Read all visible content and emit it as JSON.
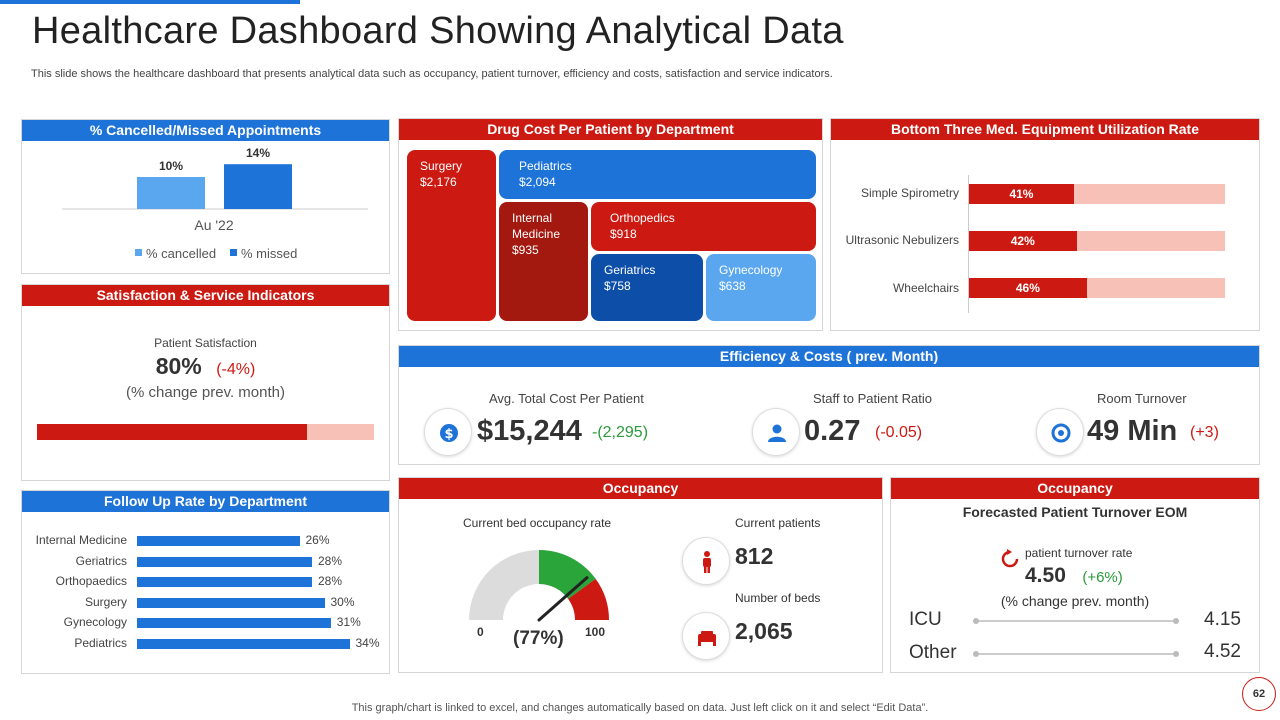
{
  "page": {
    "title": "Healthcare Dashboard Showing Analytical Data",
    "subtitle": "This slide shows the healthcare dashboard that presents analytical data such as occupancy, patient turnover,  efficiency and costs, satisfaction and service indicators.",
    "footer": "This graph/chart is linked to excel,  and changes automatically based on data. Just left click on it and select “Edit Data”.",
    "page_number": "62"
  },
  "colors": {
    "blue": "#1e73d8",
    "light_blue": "#5aa7ef",
    "red": "#cc1a12",
    "dark_red": "#a3190f",
    "pink": "#f8c1b7",
    "green": "#2a9a3a"
  },
  "panels": {
    "cancelled": {
      "title": "% Cancelled/Missed Appointments"
    },
    "drug_cost": {
      "title": "Drug Cost Per Patient by Department"
    },
    "equipment": {
      "title": "Bottom Three Med. Equipment Utilization Rate"
    },
    "satisfaction": {
      "title": "Satisfaction & Service Indicators",
      "label": "Patient Satisfaction",
      "value": "80%",
      "change": "(-4%)",
      "note": "(% change prev. month)",
      "fill": 0.8
    },
    "efficiency": {
      "title": "Efficiency & Costs ( prev. Month)",
      "kpis": [
        {
          "label": "Avg. Total Cost Per Patient",
          "value": "$15,244",
          "change": "-(2,295)",
          "icon": "dollar-icon"
        },
        {
          "label": "Staff to Patient Ratio",
          "value": "0.27",
          "change": "(-0.05)",
          "icon": "staff-icon"
        },
        {
          "label": "Room Turnover",
          "value": "49 Min",
          "change": "(+3)",
          "icon": "turnover-icon"
        }
      ]
    },
    "followup": {
      "title": "Follow Up Rate by Department"
    },
    "occupancy": {
      "title": "Occupancy",
      "gauge_label": "Current bed occupancy rate",
      "gauge_min": "0",
      "gauge_max": "100",
      "gauge_value": "(77%)",
      "current_patients_label": "Current patients",
      "current_patients": "812",
      "beds_label": "Number of beds",
      "beds": "2,065"
    },
    "turnover": {
      "title": "Occupancy",
      "subtitle": "Forecasted Patient Turnover EOM",
      "rate_label": "patient turnover rate",
      "rate_value": "4.50",
      "rate_change": "(+6%)",
      "note": "(% change prev. month)",
      "rows": [
        {
          "label": "ICU",
          "value": "4.15"
        },
        {
          "label": "Other",
          "value": "4.52"
        }
      ]
    }
  },
  "chart_data": [
    {
      "id": "cancelled",
      "type": "bar",
      "title": "% Cancelled/Missed Appointments",
      "categories": [
        "Au '22"
      ],
      "series": [
        {
          "name": "% cancelled",
          "values": [
            10
          ],
          "labels": [
            "10%"
          ]
        },
        {
          "name": "% missed",
          "values": [
            14
          ],
          "labels": [
            "14%"
          ]
        }
      ],
      "ylim": [
        0,
        20
      ]
    },
    {
      "id": "drug_cost",
      "type": "treemap",
      "title": "Drug Cost Per Patient by Department",
      "items": [
        {
          "name": "Surgery",
          "value": "$2,176"
        },
        {
          "name": "Pediatrics",
          "value": "$2,094"
        },
        {
          "name": "Internal Medicine",
          "value": "$935"
        },
        {
          "name": "Orthopedics",
          "value": "$918"
        },
        {
          "name": "Geriatrics",
          "value": "$758"
        },
        {
          "name": "Gynecology",
          "value": "$638"
        }
      ]
    },
    {
      "id": "equipment",
      "type": "bar",
      "orientation": "horizontal",
      "title": "Bottom Three Med. Equipment Utilization Rate",
      "categories": [
        "Simple Spirometry",
        "Ultrasonic Nebulizers",
        "Wheelchairs"
      ],
      "values": [
        41,
        42,
        46
      ],
      "labels": [
        "41%",
        "42%",
        "46%"
      ],
      "xlim": [
        0,
        100
      ]
    },
    {
      "id": "followup",
      "type": "bar",
      "orientation": "horizontal",
      "title": "Follow Up Rate by Department",
      "categories": [
        "Internal Medicine",
        "Geriatrics",
        "Orthopaedics",
        "Surgery",
        "Gynecology",
        "Pediatrics"
      ],
      "values": [
        26,
        28,
        28,
        30,
        31,
        34
      ],
      "labels": [
        "26%",
        "28%",
        "28%",
        "30%",
        "31%",
        "34%"
      ],
      "xlim": [
        0,
        40
      ]
    },
    {
      "id": "occupancy_gauge",
      "type": "gauge",
      "title": "Current bed occupancy rate",
      "value": 77,
      "range": [
        0,
        100
      ]
    }
  ]
}
